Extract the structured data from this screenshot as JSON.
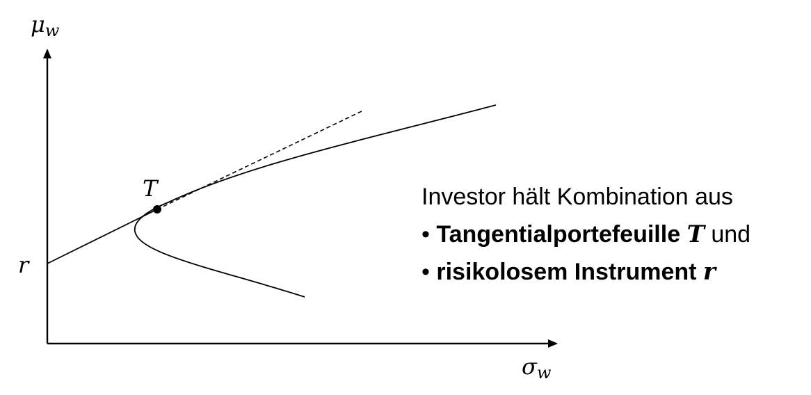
{
  "axes": {
    "y_label": "μ",
    "y_sub": "w",
    "x_label": "σ",
    "x_sub": "w",
    "r_label": "r"
  },
  "tangent_point_label": "T",
  "caption": {
    "line1": "Investor hält Kombination aus",
    "bullet": "•",
    "item1_bold": "Tangentialportefeuille",
    "item1_math": "T",
    "item1_rest": "und",
    "item2_bold": "risikolosem Instrument",
    "item2_math": "r"
  },
  "colors": {
    "ink": "#000000",
    "background": "#ffffff"
  }
}
